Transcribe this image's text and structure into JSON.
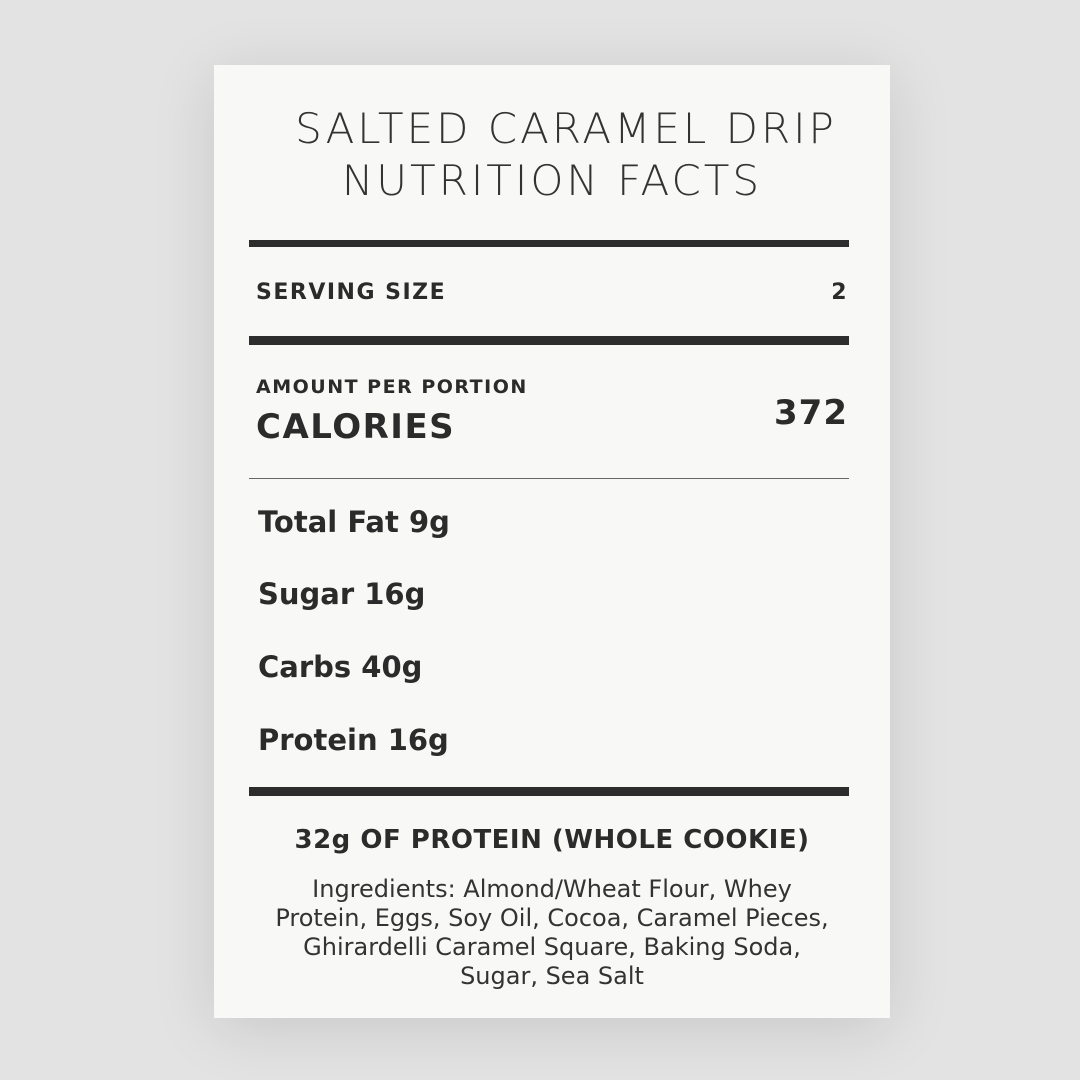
{
  "title": {
    "line1": "SALTED CARAMEL DRIP",
    "line2": "NUTRITION FACTS"
  },
  "serving": {
    "label": "SERVING SIZE",
    "value": "2"
  },
  "amount": {
    "label": "AMOUNT PER PORTION",
    "calories_label": "CALORIES",
    "calories": "372"
  },
  "nutrients": [
    "Total Fat 9g",
    "Sugar 16g",
    "Carbs 40g",
    "Protein 16g"
  ],
  "note": "32g OF PROTEIN (WHOLE COOKIE)",
  "ingredients": "Ingredients: Almond/Wheat Flour, Whey Protein, Eggs, Soy Oil, Cocoa, Caramel Pieces, Ghirardelli Caramel Square, Baking Soda, Sugar, Sea Salt"
}
